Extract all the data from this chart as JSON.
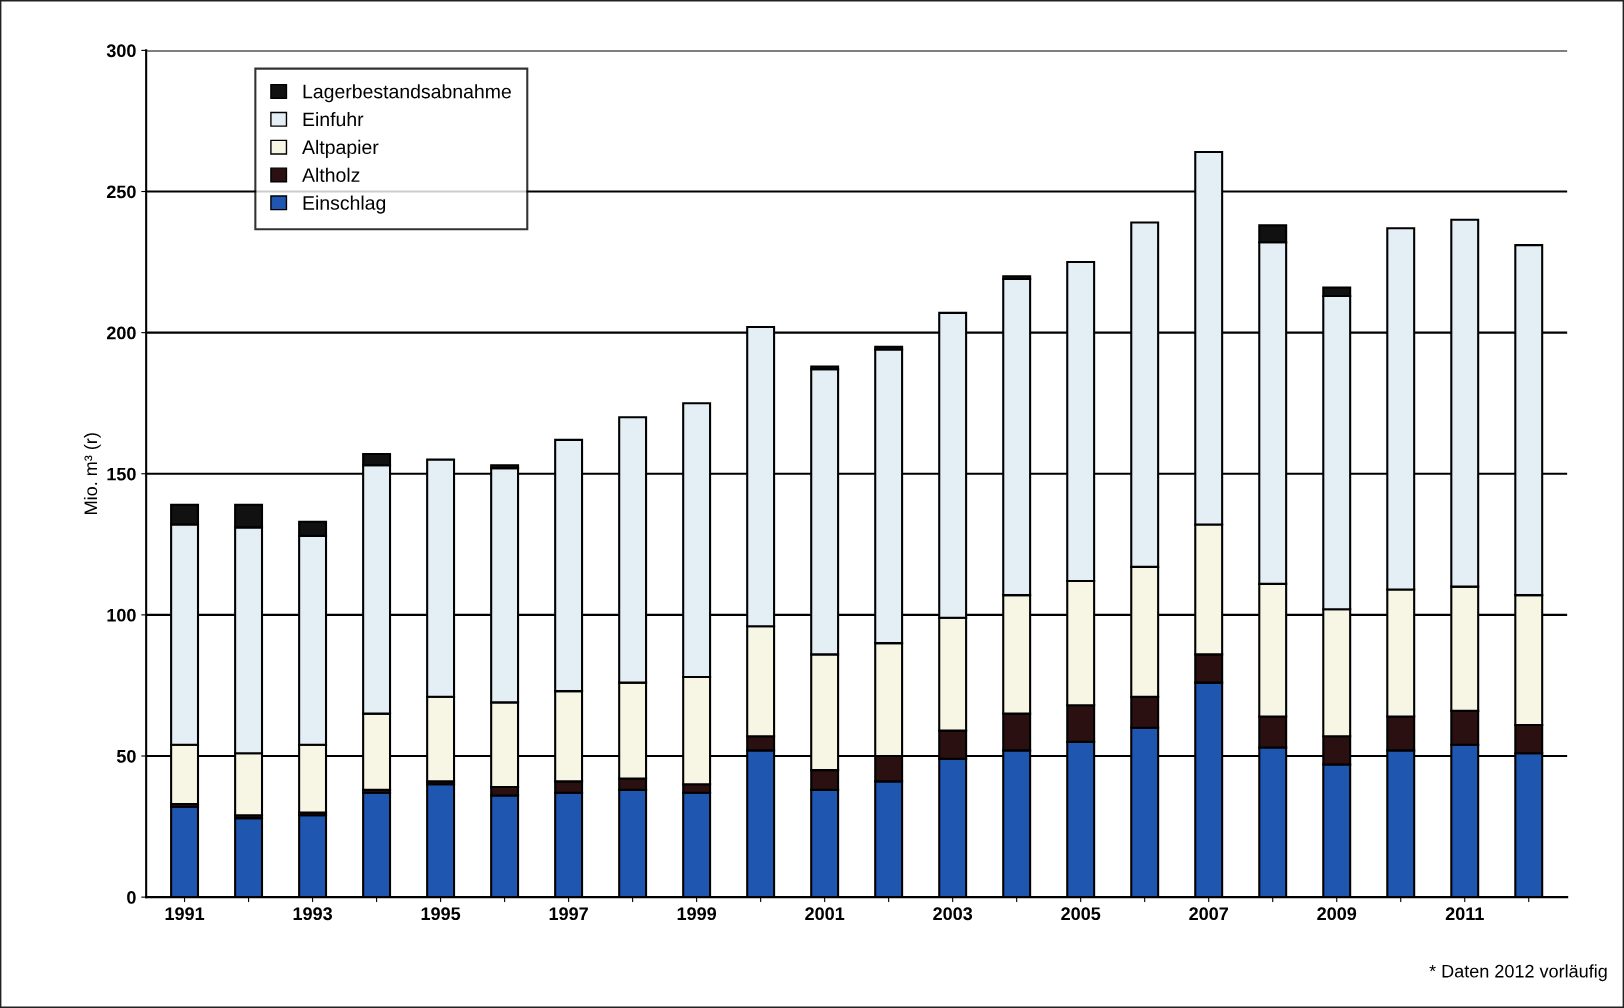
{
  "chart_data": {
    "type": "bar",
    "stacked": true,
    "ylabel": "Mio. m³ (r)",
    "categories": [
      "1991",
      null,
      "1993",
      null,
      "1995",
      null,
      "1997",
      null,
      "1999",
      null,
      "2001",
      null,
      "2003",
      null,
      "2005",
      null,
      "2007",
      null,
      "2009",
      null,
      "2011",
      null
    ],
    "series": [
      {
        "name": "Einschlag",
        "color": "#1f56b0",
        "values": [
          32,
          28,
          29,
          37,
          40,
          36,
          37,
          38,
          37,
          52,
          38,
          41,
          49,
          52,
          55,
          60,
          76,
          53,
          47,
          52,
          54,
          51
        ]
      },
      {
        "name": "Altholz",
        "color": "#2a1010",
        "values": [
          1,
          1,
          1,
          1,
          1,
          3,
          4,
          4,
          3,
          5,
          7,
          9,
          10,
          13,
          13,
          11,
          10,
          11,
          10,
          12,
          12,
          10
        ]
      },
      {
        "name": "Altpapier",
        "color": "#f7f6e4",
        "values": [
          21,
          22,
          24,
          27,
          30,
          30,
          32,
          34,
          38,
          39,
          41,
          40,
          40,
          42,
          44,
          46,
          46,
          47,
          45,
          45,
          44,
          46
        ]
      },
      {
        "name": "Einfuhr",
        "color": "#e3eff5",
        "values": [
          78,
          80,
          74,
          88,
          84,
          83,
          89,
          94,
          97,
          106,
          101,
          104,
          108,
          112,
          113,
          122,
          132,
          121,
          111,
          128,
          130,
          124
        ]
      },
      {
        "name": "Lagerbestandsabnahme",
        "color": "#111111",
        "values": [
          7,
          8,
          5,
          4,
          0,
          1,
          0,
          0,
          0,
          0,
          1,
          1,
          0,
          1,
          0,
          0,
          0,
          6,
          3,
          0,
          0,
          0
        ]
      }
    ],
    "ylim": [
      0,
      300
    ],
    "yticks": [
      0,
      50,
      100,
      150,
      200,
      250,
      300
    ],
    "grid": "y",
    "legend": "top left",
    "annotations": [
      "* Daten 2012 vorläufig"
    ]
  }
}
